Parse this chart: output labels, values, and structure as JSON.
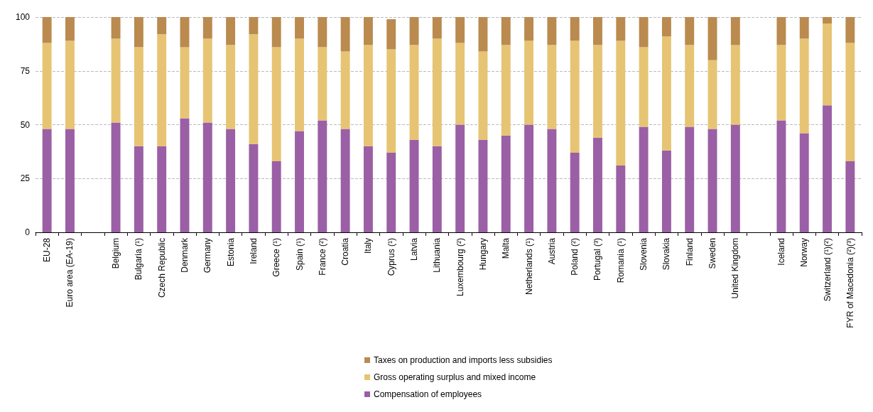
{
  "chart_data": {
    "type": "bar",
    "stacked": true,
    "categories": [
      "EU-28",
      "Euro area (EA-19)",
      null,
      "Belgium",
      "Bulgaria (¹)",
      "Czech Republic",
      "Denmark",
      "Germany",
      "Estonia",
      "Ireland",
      "Greece (¹)",
      "Spain (¹)",
      "France (²)",
      "Croatia",
      "Italy",
      "Cyprus (¹)",
      "Latvia",
      "Lithuania",
      "Luxembourg (²)",
      "Hungary",
      "Malta",
      "Netherlands (¹)",
      "Austria",
      "Poland (²)",
      "Portugal (³)",
      "Romania (¹)",
      "Slovenia",
      "Slovakia",
      "Finland",
      "Sweden",
      "United Kingdom",
      null,
      "Iceland",
      "Norway",
      "Switzerland (¹)(²)",
      "FYR of Macedonia (²)(³)"
    ],
    "series": [
      {
        "name": "Compensation of employees",
        "color": "#9b5fa5",
        "values": [
          48,
          48,
          null,
          51,
          40,
          40,
          53,
          51,
          48,
          41,
          33,
          47,
          52,
          48,
          40,
          37,
          43,
          40,
          50,
          43,
          45,
          50,
          48,
          37,
          44,
          31,
          49,
          38,
          49,
          48,
          50,
          null,
          52,
          46,
          59,
          33
        ]
      },
      {
        "name": "Gross operating surplus and mixed income",
        "color": "#e6c473",
        "values": [
          40,
          41,
          null,
          39,
          46,
          52,
          33,
          39,
          39,
          51,
          53,
          43,
          34,
          36,
          47,
          48,
          44,
          50,
          38,
          41,
          42,
          39,
          39,
          52,
          43,
          58,
          37,
          53,
          38,
          32,
          37,
          null,
          35,
          44,
          38,
          55
        ]
      },
      {
        "name": "Taxes on production and imports less subsidies",
        "color": "#ba8a4f",
        "values": [
          12,
          11,
          null,
          10,
          14,
          8,
          14,
          10,
          13,
          8,
          14,
          10,
          14,
          16,
          13,
          14,
          13,
          10,
          12,
          16,
          13,
          11,
          13,
          11,
          13,
          11,
          14,
          9,
          13,
          20,
          13,
          null,
          13,
          10,
          3,
          12
        ]
      }
    ],
    "ylim": [
      0,
      100
    ],
    "yticks": [
      0,
      25,
      50,
      75,
      100
    ],
    "grid": "y",
    "legend": "bottom"
  }
}
